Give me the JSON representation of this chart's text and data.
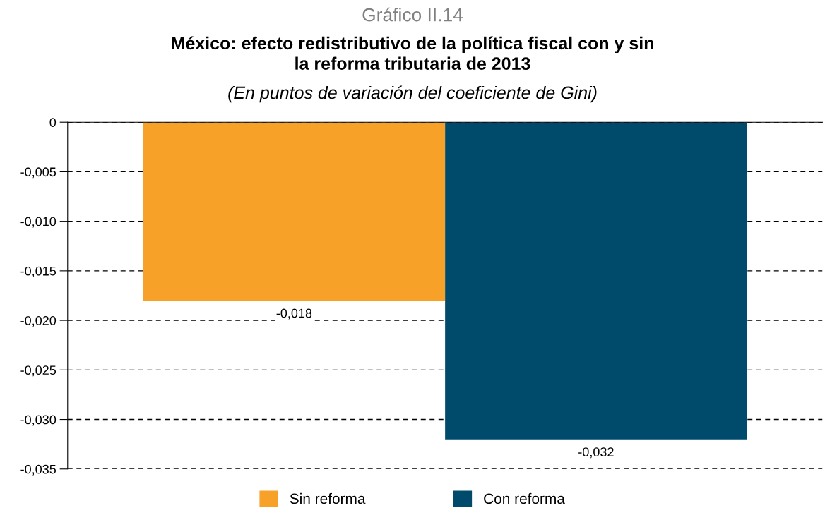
{
  "chart_data": {
    "type": "bar",
    "title": "Gráfico II.14",
    "subtitle": "México: efecto redistributivo de la política fiscal con y sin\nla reforma tributaria de 2013",
    "annotations": [
      "(En puntos de variación del coeficiente de Gini)"
    ],
    "categories": [
      null
    ],
    "series": [
      {
        "name": "Sin reforma",
        "color": "#f7a128",
        "values": [
          -0.018
        ],
        "value_labels": [
          "-0,018"
        ]
      },
      {
        "name": "Con reforma",
        "color": "#004a6b",
        "values": [
          -0.032
        ],
        "value_labels": [
          "-0,032"
        ]
      }
    ],
    "ylim": [
      -0.035,
      0
    ],
    "yticks": [
      {
        "value": 0,
        "label": "0"
      },
      {
        "value": -0.005,
        "label": "-0,005"
      },
      {
        "value": -0.01,
        "label": "-0,010"
      },
      {
        "value": -0.015,
        "label": "-0,015"
      },
      {
        "value": -0.02,
        "label": "-0,020"
      },
      {
        "value": -0.025,
        "label": "-0,025"
      },
      {
        "value": -0.03,
        "label": "-0,030"
      },
      {
        "value": -0.035,
        "label": "-0,035"
      }
    ],
    "grid": "y",
    "line_style": "dashed",
    "legend": "bottom"
  }
}
